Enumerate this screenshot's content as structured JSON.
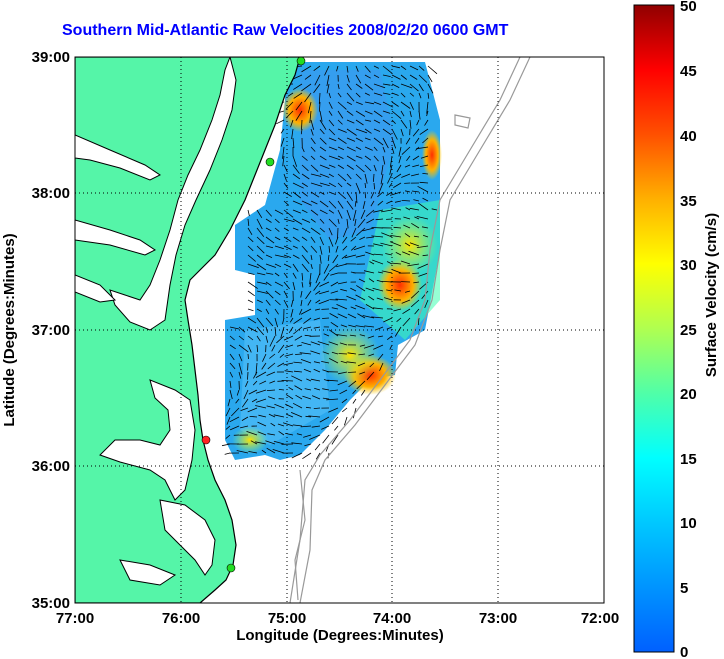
{
  "title": "Southern Mid-Atlantic Raw Velocities 2008/02/20 0600 GMT",
  "x_axis": {
    "label": "Longitude (Degrees:Minutes)",
    "ticks": [
      "77:00",
      "76:00",
      "75:00",
      "74:00",
      "73:00",
      "72:00"
    ]
  },
  "y_axis": {
    "label": "Latitude (Degrees:Minutes)",
    "ticks": [
      "39:00",
      "38:00",
      "37:00",
      "36:00",
      "35:00"
    ]
  },
  "colorbar": {
    "label": "Surface Velocity (cm/s)",
    "min": 0,
    "max": 50,
    "ticks": [
      "50",
      "45",
      "40",
      "35",
      "30",
      "25",
      "20",
      "15",
      "10",
      "5",
      "0"
    ]
  },
  "colors": {
    "land": "#55f5a8",
    "water": "#ffffff",
    "title": "#0000ff",
    "coastline": "#000000",
    "bathymetry": "#999999"
  },
  "stations": [
    {
      "name": "north-station",
      "color": "#22dd22"
    },
    {
      "name": "delmarva-station",
      "color": "#22dd22"
    },
    {
      "name": "duck-station",
      "color": "#ff2222"
    },
    {
      "name": "south-station",
      "color": "#22dd22"
    }
  ]
}
